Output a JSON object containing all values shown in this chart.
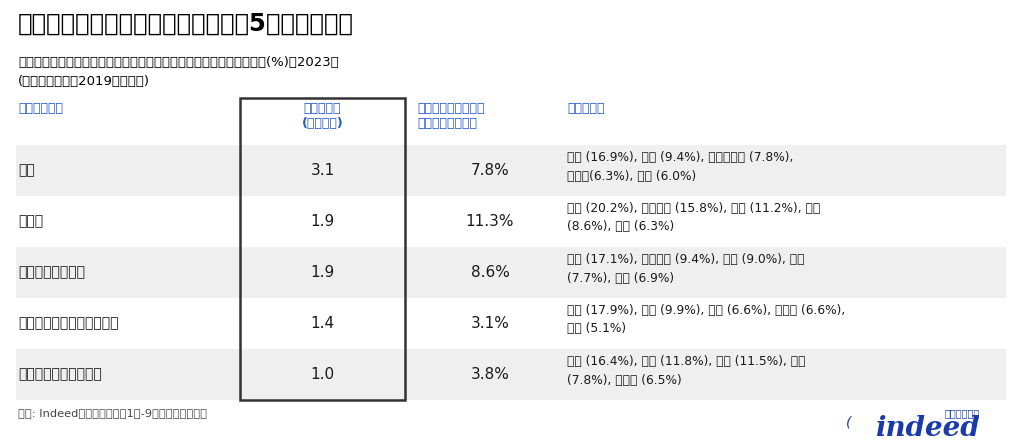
{
  "title": "国外からの関心が高まっている上位5職種カテゴリ",
  "subtitle1": "国外から日本への求人クリックにおける職種カテゴリ間クリック割合(%)、2023年",
  "subtitle2": "(シェア変化は対2019年との差)",
  "col1_header": "職種カテゴリ",
  "col2_header": "シェア変化\n(ポイント)",
  "col3_header": "国外クリックの職種\nカテゴリ間シェア",
  "col4_header": "上位出身国",
  "rows": [
    {
      "category": "教育",
      "share_change": "3.1",
      "click_share": "7.8%",
      "countries": "米国 (16.9%), 中国 (9.4%), フィリピン (7.8%),\nカナダ(6.3%), 韓国 (6.0%)"
    },
    {
      "category": "小売り",
      "share_change": "1.9",
      "click_share": "11.3%",
      "countries": "米国 (20.2%), ベトナム (15.8%), 韓国 (11.2%), 中国\n(8.6%), 台湾 (6.3%)"
    },
    {
      "category": "ソフトウェア開発",
      "share_change": "1.9",
      "click_share": "8.6%",
      "countries": "米国 (17.1%), ベトナム (9.4%), 中国 (9.0%), 韓国\n(7.7%), 台湾 (6.9%)"
    },
    {
      "category": "制作・編集・メディア運営",
      "share_change": "1.4",
      "click_share": "3.1%",
      "countries": "米国 (17.9%), 韓国 (9.9%), 台湾 (6.6%), カナダ (6.6%),\n中国 (5.1%)"
    },
    {
      "category": "ホスピタリティ・観光",
      "share_change": "1.0",
      "click_share": "3.8%",
      "countries": "米国 (16.4%), 韓国 (11.8%), 中国 (11.5%), 台湾\n(7.8%), カナダ (6.5%)"
    }
  ],
  "footnote": "出所: Indeed。データは各年1月-9月の期間を使用。",
  "bg_color": "#ffffff",
  "header_text_color": "#2255cc",
  "title_color": "#000000",
  "subtitle_color": "#000000",
  "row_bg_even": "#efefef",
  "row_bg_odd": "#ffffff",
  "border_color": "#333333",
  "text_color": "#1a1a1a",
  "footnote_color": "#444444",
  "indeed_blue": "#1a3aaa",
  "indeed_text": "インディード"
}
